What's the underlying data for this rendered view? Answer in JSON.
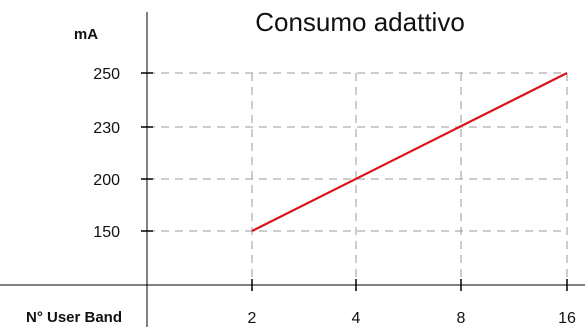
{
  "chart_data": {
    "type": "line",
    "title": "Consumo adattivo",
    "ylabel": "mA",
    "xlabel": "N° User Band",
    "x_ticks": [
      "2",
      "4",
      "8",
      "16"
    ],
    "y_ticks": [
      "150",
      "200",
      "230",
      "250"
    ],
    "series": [
      {
        "x": [
          "2",
          "16"
        ],
        "values": [
          150,
          250
        ],
        "color": "#d8141e"
      }
    ],
    "grid": true,
    "axis_scale": "categorical"
  }
}
